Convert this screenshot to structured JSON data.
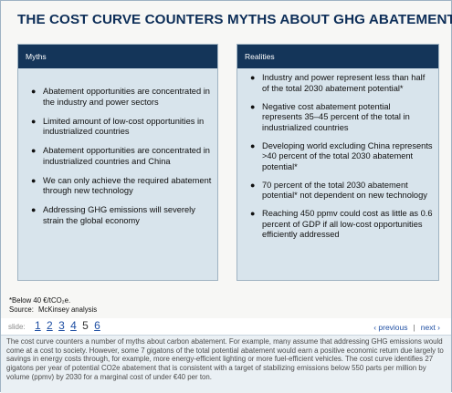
{
  "slide": {
    "title": "THE COST CURVE COUNTERS MYTHS ABOUT GHG ABATEMENT",
    "myths": {
      "header": "Myths",
      "items": [
        "Abatement opportunities are concentrated in the industry and power sectors",
        "Limited amount of low-cost opportunities in industrialized countries",
        "Abatement opportunities are concentrated in industrialized countries and China",
        "We can only achieve the required abatement through new technology",
        "Addressing GHG emissions will severely strain the global economy"
      ]
    },
    "realities": {
      "header": "Realities",
      "items": [
        "Industry and power represent less than half of the total 2030 abatement potential*",
        "Negative cost abatement potential represents 35–45 percent of the total in industrialized countries",
        "Developing world excluding China represents >40 percent of the total 2030 abatement potential*",
        "70 percent of the total 2030 abatement potential* not dependent on new technology",
        "Reaching 450 ppmv could cost as little as 0.6 percent of GDP if all low-cost opportunities efficiently addressed"
      ]
    },
    "footnote": "*Below 40 €/tCO₂e.",
    "source_label": "Source:",
    "source_value": "McKinsey analysis"
  },
  "nav": {
    "slide_label": "slide:",
    "pages": [
      "1",
      "2",
      "3",
      "4",
      "5",
      "6"
    ],
    "current_page": "5",
    "previous_label": "‹ previous",
    "separator": "|",
    "next_label": "next ›"
  },
  "description": "The cost curve counters a number of myths about carbon abatement. For example, many assume that addressing GHG emissions would come at a cost to society. However, some 7 gigatons of the total potential abatement would earn a positive economic return due largely to savings in energy costs through, for example, more energy-efficient lighting or more fuel-efficient vehicles. The cost curve identifies 27 gigatons per year of potential CO2e abatement that is consistent with a target of stabilizing emissions below 550 parts per million by volume (ppmv) by 2030 for a marginal cost of under €40 per ton.",
  "colors": {
    "title": "#0d2e58",
    "panel_header": "#143559",
    "panel_body": "#d8e4ec",
    "link": "#1f4fa3",
    "description_bg": "#eaf0f4"
  }
}
